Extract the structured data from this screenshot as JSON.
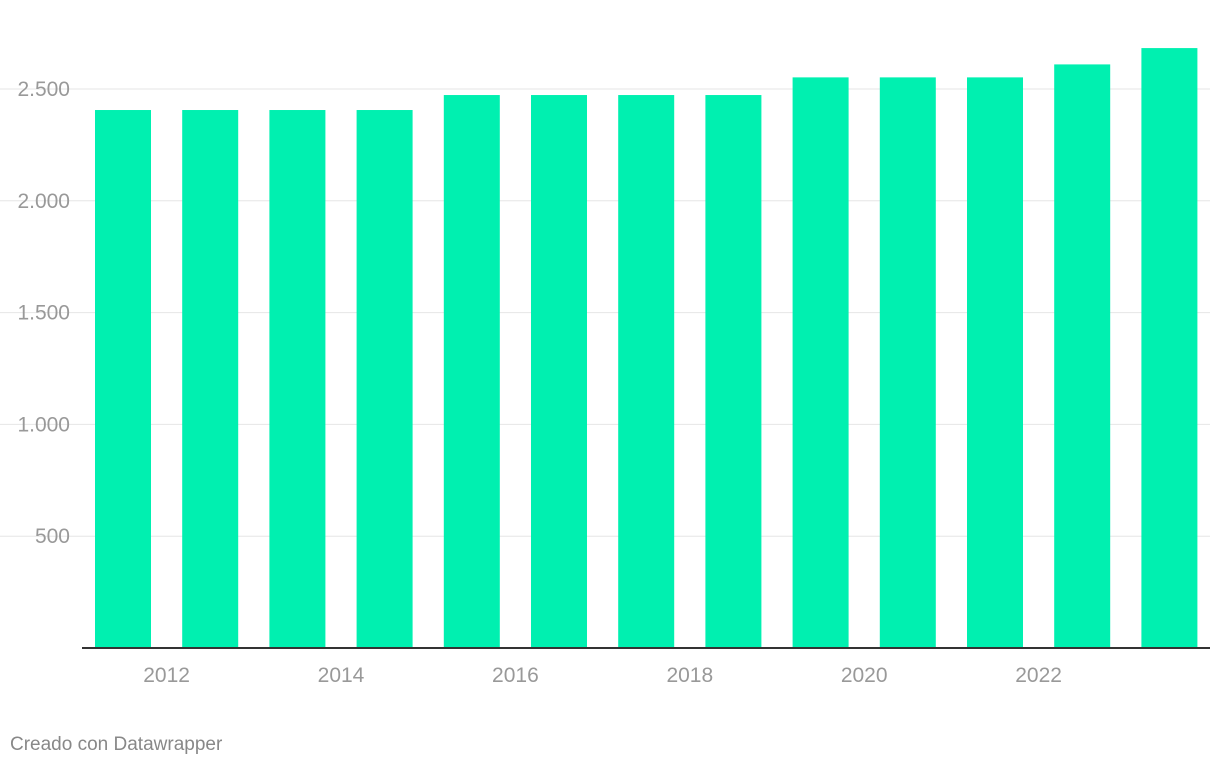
{
  "chart_data": {
    "type": "bar",
    "title": "",
    "xlabel": "",
    "ylabel": "",
    "categories": [
      "2011",
      "2012",
      "2013",
      "2014",
      "2015",
      "2016",
      "2017",
      "2018",
      "2019",
      "2020",
      "2021",
      "2022",
      "2023"
    ],
    "values": [
      2406,
      2406,
      2406,
      2406,
      2473,
      2473,
      2473,
      2473,
      2552,
      2552,
      2552,
      2610,
      2683
    ],
    "x_tick_labels": [
      "2012",
      "2014",
      "2016",
      "2018",
      "2020",
      "2022"
    ],
    "y_ticks": [
      500,
      1000,
      1500,
      2000,
      2500
    ],
    "y_tick_labels": [
      "500",
      "1.000",
      "1.500",
      "2.000",
      "2.500"
    ],
    "ylim": [
      0,
      2700
    ],
    "grid": true,
    "bar_color": "#00f0b0"
  },
  "footer": {
    "credit": "Creado con Datawrapper"
  }
}
